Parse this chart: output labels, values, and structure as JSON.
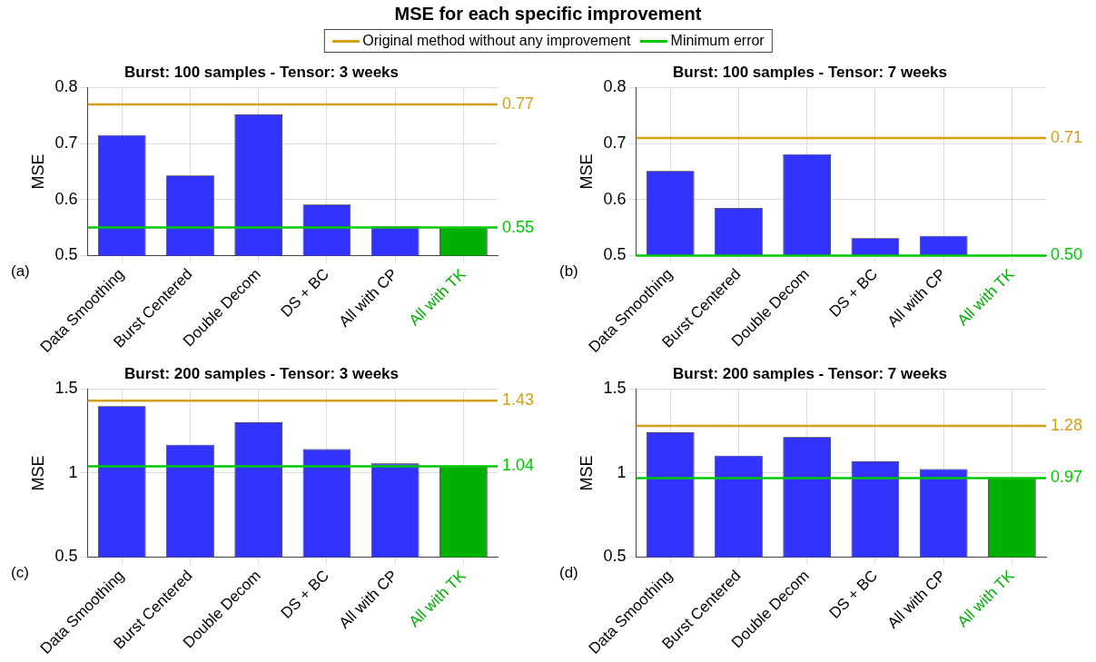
{
  "chart_data": [
    {
      "type": "bar",
      "title": "Burst: 100 samples - Tensor: 3 weeks",
      "ylabel": "MSE",
      "annotations": [
        "MSE for each specific improvement",
        "Original method without any improvement",
        "Minimum error",
        "(a)"
      ],
      "legend": "top",
      "categories": [
        "Data Smoothing",
        "Burst Centered",
        "Double Decom",
        "DS + BC",
        "All with CP",
        "All with TK"
      ],
      "values": [
        0.715,
        0.643,
        0.752,
        0.591,
        0.552,
        0.55
      ],
      "colors": [
        "#3333ff",
        "#3333ff",
        "#3333ff",
        "#3333ff",
        "#3333ff",
        "#00b000"
      ],
      "ylim": [
        0.5,
        0.8
      ],
      "yticks": [
        0.5,
        0.6,
        0.7,
        0.8
      ],
      "grid": true,
      "ref_lines": [
        {
          "axis": "y",
          "value": 0.77,
          "label": "0.77",
          "color": "#d4a017"
        },
        {
          "axis": "y",
          "value": 0.55,
          "label": "0.55",
          "color": "#00c800"
        }
      ]
    },
    {
      "type": "bar",
      "title": "Burst: 100 samples - Tensor: 7 weeks",
      "ylabel": "MSE",
      "annotations": [
        "(b)"
      ],
      "categories": [
        "Data Smoothing",
        "Burst Centered",
        "Double Decom",
        "DS + BC",
        "All with CP",
        "All with TK"
      ],
      "values": [
        0.651,
        0.585,
        0.681,
        0.531,
        0.535,
        0.5
      ],
      "colors": [
        "#3333ff",
        "#3333ff",
        "#3333ff",
        "#3333ff",
        "#3333ff",
        "#00b000"
      ],
      "ylim": [
        0.5,
        0.8
      ],
      "yticks": [
        0.5,
        0.6,
        0.7,
        0.8
      ],
      "grid": true,
      "ref_lines": [
        {
          "axis": "y",
          "value": 0.71,
          "label": "0.71",
          "color": "#d4a017"
        },
        {
          "axis": "y",
          "value": 0.5,
          "label": "0.50",
          "color": "#00c800"
        }
      ]
    },
    {
      "type": "bar",
      "title": "Burst: 200 samples - Tensor: 3 weeks",
      "ylabel": "MSE",
      "annotations": [
        "(c)"
      ],
      "categories": [
        "Data Smoothing",
        "Burst Centered",
        "Double Decom",
        "DS + BC",
        "All with CP",
        "All with TK"
      ],
      "values": [
        1.398,
        1.169,
        1.303,
        1.142,
        1.057,
        1.04
      ],
      "colors": [
        "#3333ff",
        "#3333ff",
        "#3333ff",
        "#3333ff",
        "#3333ff",
        "#00b000"
      ],
      "ylim": [
        0.5,
        1.5
      ],
      "yticks": [
        0.5,
        1,
        1.5
      ],
      "grid": true,
      "ref_lines": [
        {
          "axis": "y",
          "value": 1.43,
          "label": "1.43",
          "color": "#d4a017"
        },
        {
          "axis": "y",
          "value": 1.04,
          "label": "1.04",
          "color": "#00c800"
        }
      ]
    },
    {
      "type": "bar",
      "title": "Burst: 200 samples - Tensor: 7 weeks",
      "ylabel": "MSE",
      "annotations": [
        "(d)"
      ],
      "categories": [
        "Data Smoothing",
        "Burst Centered",
        "Double Decom",
        "DS + BC",
        "All with CP",
        "All with TK"
      ],
      "values": [
        1.243,
        1.104,
        1.214,
        1.07,
        1.024,
        0.97
      ],
      "colors": [
        "#3333ff",
        "#3333ff",
        "#3333ff",
        "#3333ff",
        "#3333ff",
        "#00b000"
      ],
      "ylim": [
        0.5,
        1.5
      ],
      "yticks": [
        0.5,
        1,
        1.5
      ],
      "grid": true,
      "ref_lines": [
        {
          "axis": "y",
          "value": 1.28,
          "label": "1.28",
          "color": "#d4a017"
        },
        {
          "axis": "y",
          "value": 0.97,
          "label": "0.97",
          "color": "#00c800"
        }
      ]
    }
  ]
}
